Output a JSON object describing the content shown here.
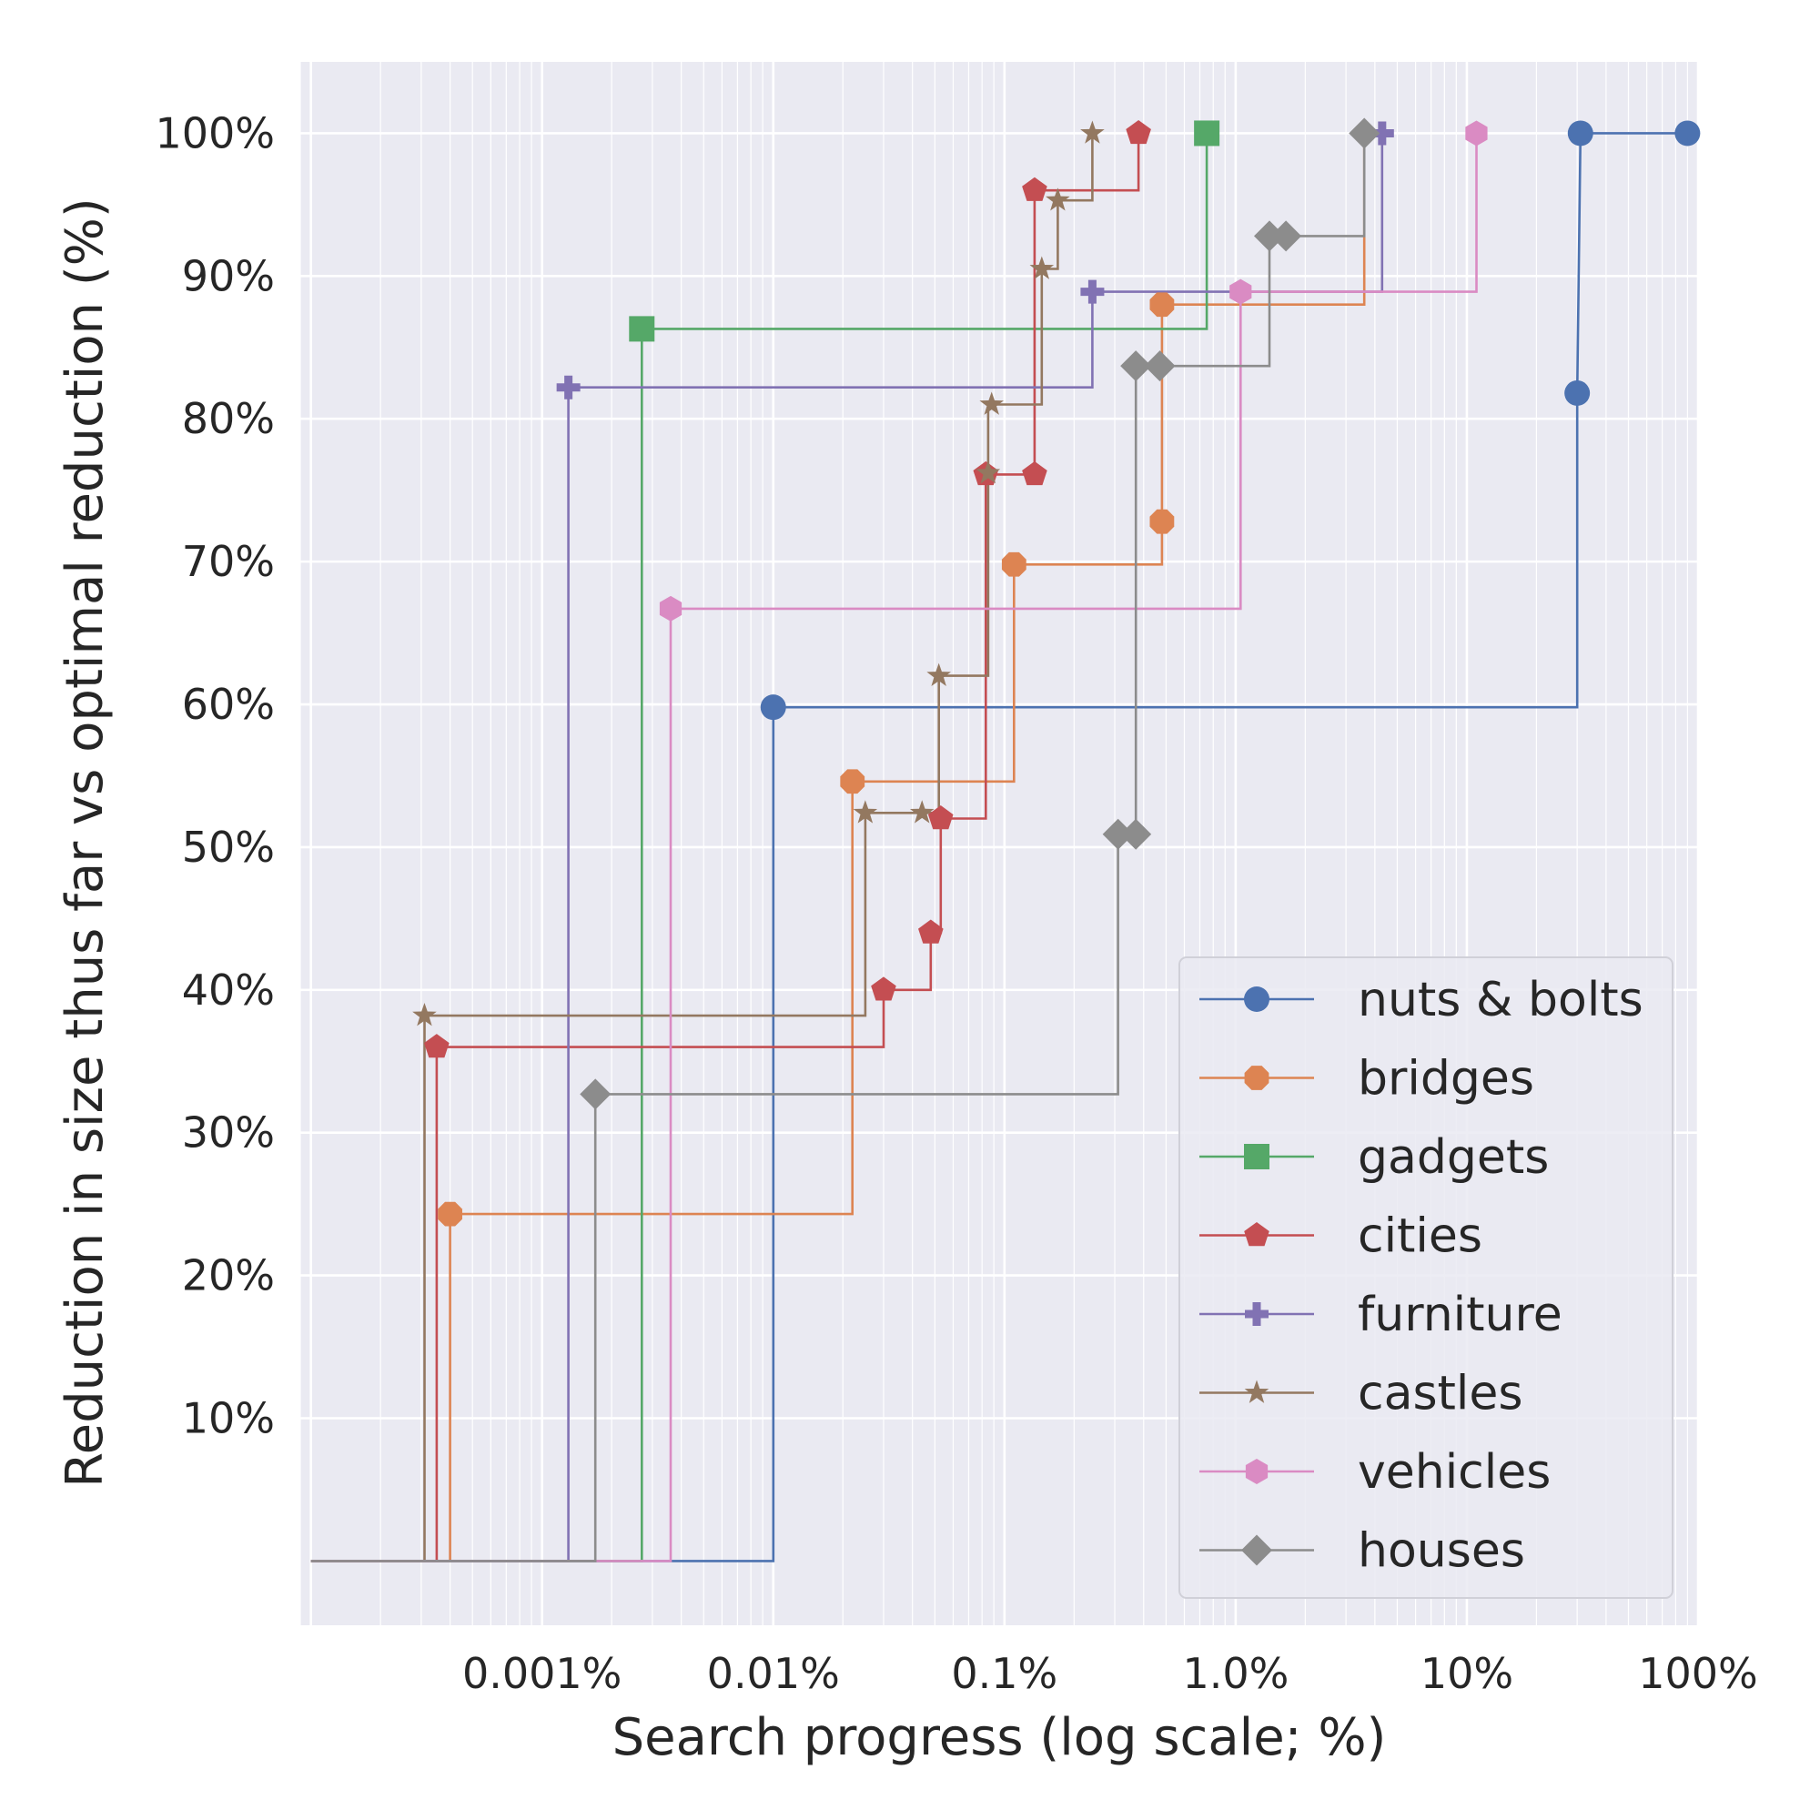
{
  "chart_data": {
    "type": "line",
    "title": "",
    "xlabel": "Search progress (log scale; %)",
    "ylabel": "Reduction in size thus far vs optimal reduction (%)",
    "xscale": "log",
    "xlim": [
      9e-05,
      100
    ],
    "ylim": [
      -4.5,
      105
    ],
    "xticks": [
      {
        "value": 0.001,
        "label": "0.001%"
      },
      {
        "value": 0.01,
        "label": "0.01%"
      },
      {
        "value": 0.1,
        "label": "0.1%"
      },
      {
        "value": 1.0,
        "label": "1.0%"
      },
      {
        "value": 10,
        "label": "10%"
      },
      {
        "value": 100,
        "label": "100%"
      }
    ],
    "yticks": [
      {
        "value": 10,
        "label": "10%"
      },
      {
        "value": 20,
        "label": "20%"
      },
      {
        "value": 30,
        "label": "30%"
      },
      {
        "value": 40,
        "label": "40%"
      },
      {
        "value": 50,
        "label": "50%"
      },
      {
        "value": 60,
        "label": "60%"
      },
      {
        "value": 70,
        "label": "70%"
      },
      {
        "value": 80,
        "label": "80%"
      },
      {
        "value": 90,
        "label": "90%"
      },
      {
        "value": 100,
        "label": "100%"
      }
    ],
    "grid": true,
    "legend_position": "bottom-right",
    "step": "post",
    "series": [
      {
        "name": "nuts & bolts",
        "color": "#4C72B0",
        "marker": "circle",
        "points": [
          [
            0.0001,
            0
          ],
          [
            0.01,
            0
          ],
          [
            0.01,
            59.8
          ],
          [
            30,
            59.8
          ],
          [
            30,
            81.8
          ],
          [
            31,
            100
          ],
          [
            90,
            100
          ]
        ],
        "markers": [
          [
            0.01,
            59.8
          ],
          [
            30,
            81.8
          ],
          [
            31,
            100
          ],
          [
            90,
            100
          ]
        ]
      },
      {
        "name": "bridges",
        "color": "#DD8452",
        "marker": "octagon",
        "points": [
          [
            0.0001,
            0
          ],
          [
            0.0004,
            0
          ],
          [
            0.0004,
            24.3
          ],
          [
            0.022,
            24.3
          ],
          [
            0.022,
            54.6
          ],
          [
            0.11,
            54.6
          ],
          [
            0.11,
            69.8
          ],
          [
            0.48,
            69.8
          ],
          [
            0.48,
            72.8
          ],
          [
            0.48,
            88
          ],
          [
            3.6,
            88
          ],
          [
            3.6,
            100
          ]
        ],
        "markers": [
          [
            0.0004,
            24.3
          ],
          [
            0.022,
            54.6
          ],
          [
            0.11,
            69.8
          ],
          [
            0.48,
            72.8
          ],
          [
            0.48,
            88
          ]
        ]
      },
      {
        "name": "gadgets",
        "color": "#55A868",
        "marker": "square",
        "points": [
          [
            0.0001,
            0
          ],
          [
            0.0027,
            0
          ],
          [
            0.0027,
            86.3
          ],
          [
            0.75,
            86.3
          ],
          [
            0.75,
            100
          ]
        ],
        "markers": [
          [
            0.0027,
            86.3
          ],
          [
            0.75,
            100
          ]
        ]
      },
      {
        "name": "cities",
        "color": "#C44E52",
        "marker": "pentagon",
        "points": [
          [
            0.0001,
            0
          ],
          [
            0.00035,
            0
          ],
          [
            0.00035,
            36
          ],
          [
            0.03,
            36
          ],
          [
            0.03,
            40
          ],
          [
            0.048,
            40
          ],
          [
            0.048,
            44
          ],
          [
            0.053,
            44
          ],
          [
            0.053,
            52
          ],
          [
            0.083,
            52
          ],
          [
            0.083,
            76.1
          ],
          [
            0.135,
            76.1
          ],
          [
            0.135,
            96
          ],
          [
            0.38,
            96
          ],
          [
            0.38,
            100
          ]
        ],
        "markers": [
          [
            0.00035,
            36
          ],
          [
            0.03,
            40
          ],
          [
            0.048,
            44
          ],
          [
            0.053,
            52
          ],
          [
            0.083,
            76.1
          ],
          [
            0.135,
            76.1
          ],
          [
            0.135,
            96
          ],
          [
            0.38,
            100
          ]
        ]
      },
      {
        "name": "furniture",
        "color": "#8172B3",
        "marker": "plus",
        "points": [
          [
            0.0001,
            0
          ],
          [
            0.0013,
            0
          ],
          [
            0.0013,
            82.2
          ],
          [
            0.24,
            82.2
          ],
          [
            0.24,
            88.9
          ],
          [
            4.3,
            88.9
          ],
          [
            4.3,
            100
          ]
        ],
        "markers": [
          [
            0.0013,
            82.2
          ],
          [
            0.24,
            88.9
          ],
          [
            4.3,
            100
          ]
        ]
      },
      {
        "name": "castles",
        "color": "#937860",
        "marker": "star",
        "points": [
          [
            0.0001,
            0
          ],
          [
            0.00031,
            0
          ],
          [
            0.00031,
            38.2
          ],
          [
            0.025,
            38.2
          ],
          [
            0.025,
            52.4
          ],
          [
            0.044,
            52.4
          ],
          [
            0.052,
            52.4
          ],
          [
            0.052,
            62
          ],
          [
            0.085,
            62
          ],
          [
            0.085,
            81
          ],
          [
            0.145,
            81
          ],
          [
            0.145,
            90.5
          ],
          [
            0.17,
            90.5
          ],
          [
            0.17,
            95.3
          ],
          [
            0.24,
            95.3
          ],
          [
            0.24,
            100
          ]
        ],
        "markers": [
          [
            0.00031,
            38.2
          ],
          [
            0.025,
            52.4
          ],
          [
            0.044,
            52.4
          ],
          [
            0.052,
            62
          ],
          [
            0.085,
            76.2
          ],
          [
            0.088,
            81
          ],
          [
            0.145,
            90.5
          ],
          [
            0.17,
            95.3
          ],
          [
            0.24,
            100
          ]
        ]
      },
      {
        "name": "vehicles",
        "color": "#DA8BC3",
        "marker": "hexagon",
        "points": [
          [
            0.0001,
            0
          ],
          [
            0.0036,
            0
          ],
          [
            0.0036,
            66.7
          ],
          [
            1.05,
            66.7
          ],
          [
            1.05,
            88.9
          ],
          [
            11,
            88.9
          ],
          [
            11,
            100
          ]
        ],
        "markers": [
          [
            0.0036,
            66.7
          ],
          [
            1.05,
            88.9
          ],
          [
            11,
            100
          ]
        ]
      },
      {
        "name": "houses",
        "color": "#8C8C8C",
        "marker": "diamond",
        "points": [
          [
            0.0001,
            0
          ],
          [
            0.0017,
            0
          ],
          [
            0.0017,
            32.7
          ],
          [
            0.31,
            32.7
          ],
          [
            0.31,
            50.9
          ],
          [
            0.37,
            50.9
          ],
          [
            0.37,
            83.7
          ],
          [
            1.4,
            83.7
          ],
          [
            1.4,
            92.8
          ],
          [
            3.6,
            92.8
          ],
          [
            3.6,
            100
          ]
        ],
        "markers": [
          [
            0.0017,
            32.7
          ],
          [
            0.31,
            50.9
          ],
          [
            0.37,
            50.9
          ],
          [
            0.37,
            83.7
          ],
          [
            0.47,
            83.7
          ],
          [
            1.4,
            92.8
          ],
          [
            1.65,
            92.8
          ],
          [
            3.6,
            100
          ]
        ]
      }
    ]
  }
}
